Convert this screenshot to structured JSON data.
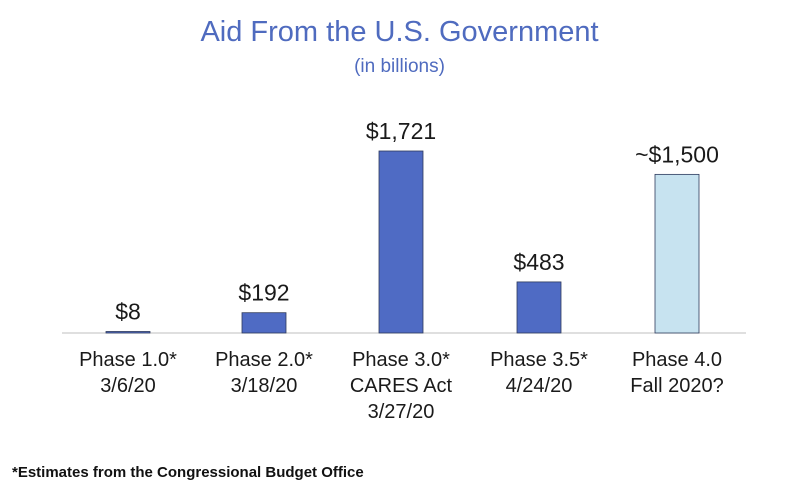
{
  "chart_data": {
    "type": "bar",
    "title": "Aid From the U.S. Government",
    "subtitle": "(in billions)",
    "categories": [
      [
        "Phase 1.0*",
        "3/6/20"
      ],
      [
        "Phase 2.0*",
        "3/18/20"
      ],
      [
        "Phase 3.0*",
        "CARES Act",
        "3/27/20"
      ],
      [
        "Phase 3.5*",
        "4/24/20"
      ],
      [
        "Phase 4.0",
        "Fall 2020?"
      ]
    ],
    "values": [
      8,
      192,
      1721,
      483,
      1500
    ],
    "value_labels": [
      "$8",
      "$192",
      "$1,721",
      "$483",
      "~$1,500"
    ],
    "bar_colors": [
      "#4f6bc4",
      "#4f6bc4",
      "#4f6bc4",
      "#4f6bc4",
      "#c7e3f0"
    ],
    "ylim": [
      0,
      1800
    ],
    "xlabel": "",
    "ylabel": "",
    "grid": false,
    "legend": "none"
  },
  "colors": {
    "title": "#4f6bbf",
    "bar_edge": "#2e3a5c",
    "axis": "#bfbfbf"
  },
  "footnote": "*Estimates from the Congressional Budget Office"
}
